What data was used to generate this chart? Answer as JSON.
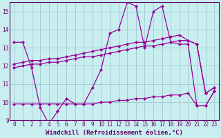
{
  "title": "",
  "xlabel": "Windchill (Refroidissement éolien,°C)",
  "ylabel": "",
  "bg_color": "#c8eef0",
  "grid_color": "#a0c8d0",
  "line_color": "#990099",
  "xlim": [
    -0.5,
    23.5
  ],
  "ylim": [
    9,
    15.5
  ],
  "yticks": [
    9,
    10,
    11,
    12,
    13,
    14,
    15
  ],
  "xticks": [
    0,
    1,
    2,
    3,
    4,
    5,
    6,
    7,
    8,
    9,
    10,
    11,
    12,
    13,
    14,
    15,
    16,
    17,
    18,
    19,
    20,
    21,
    22,
    23
  ],
  "x": [
    0,
    1,
    2,
    3,
    4,
    5,
    6,
    7,
    8,
    9,
    10,
    11,
    12,
    13,
    14,
    15,
    16,
    17,
    18,
    19,
    20,
    21,
    22,
    23
  ],
  "y_main": [
    13.3,
    13.3,
    11.9,
    9.7,
    8.8,
    9.5,
    10.2,
    9.9,
    9.9,
    10.8,
    11.8,
    13.8,
    14.0,
    15.5,
    15.3,
    13.0,
    15.0,
    15.3,
    13.3,
    13.2,
    13.2,
    9.8,
    9.8,
    10.6
  ],
  "y_trend1": [
    11.9,
    12.0,
    12.1,
    12.1,
    12.2,
    12.2,
    12.3,
    12.4,
    12.5,
    12.5,
    12.6,
    12.7,
    12.8,
    12.9,
    13.0,
    13.1,
    13.1,
    13.2,
    13.3,
    13.4,
    13.4,
    13.2,
    10.5,
    10.8
  ],
  "y_trend2": [
    12.1,
    12.2,
    12.3,
    12.3,
    12.4,
    12.4,
    12.5,
    12.6,
    12.7,
    12.8,
    12.9,
    13.0,
    13.1,
    13.2,
    13.3,
    13.3,
    13.4,
    13.5,
    13.6,
    13.7,
    13.4,
    13.2,
    10.5,
    10.8
  ],
  "y_bottom": [
    9.9,
    9.9,
    9.9,
    9.9,
    9.9,
    9.9,
    9.9,
    9.9,
    9.9,
    9.9,
    10.0,
    10.0,
    10.1,
    10.1,
    10.2,
    10.2,
    10.3,
    10.3,
    10.4,
    10.4,
    10.5,
    9.8,
    9.8,
    10.6
  ],
  "marker": "D",
  "markersize": 2.0,
  "linewidth": 0.9,
  "font_color": "#660066",
  "tick_fontsize": 5.5,
  "xlabel_fontsize": 6.5
}
